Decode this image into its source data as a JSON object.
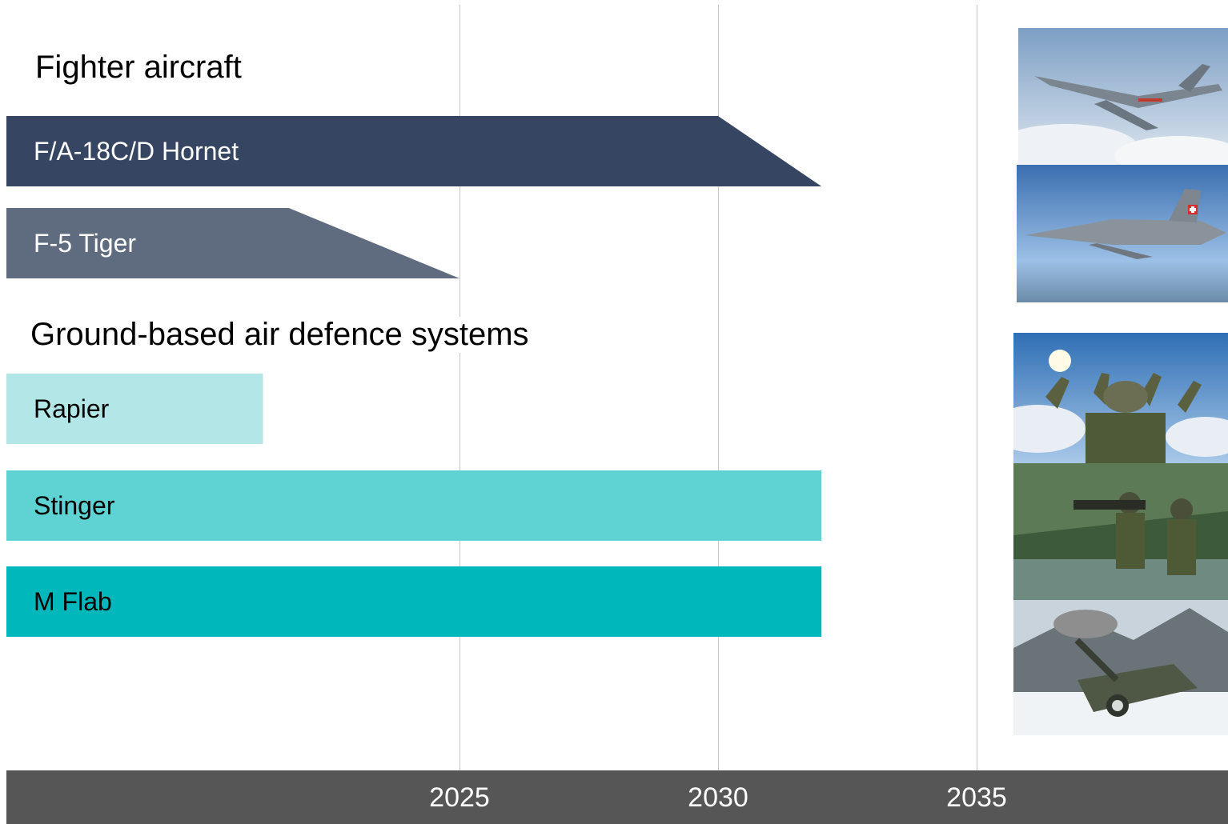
{
  "chart_data": {
    "type": "bar",
    "orientation": "horizontal",
    "x_axis": {
      "ticks": [
        2025,
        2030,
        2035
      ],
      "tick_labels": [
        "2025",
        "2030",
        "2035"
      ]
    },
    "groups": [
      {
        "title": "Fighter aircraft",
        "bars": [
          {
            "label": "F/A-18C/D Hornet",
            "end": 2030,
            "taper_end": 2032,
            "color": "#354562",
            "text_color": "#ffffff"
          },
          {
            "label": "F-5 Tiger",
            "end": 2021.7,
            "taper_end": 2025,
            "color": "#5f6c80",
            "text_color": "#ffffff"
          }
        ]
      },
      {
        "title": "Ground-based air defence systems",
        "bars": [
          {
            "label": "Rapier",
            "end": 2021.2,
            "color": "#b3e6e6",
            "text_color": "#000000"
          },
          {
            "label": "Stinger",
            "end": 2032,
            "color": "#5fd3d3",
            "text_color": "#000000"
          },
          {
            "label": "M Flab",
            "end": 2032,
            "color": "#00b8bc",
            "text_color": "#000000"
          }
        ]
      }
    ]
  },
  "photos": [
    {
      "icon": "fa18-hornet-photo"
    },
    {
      "icon": "f5-tiger-photo"
    },
    {
      "icon": "rapier-launcher-photo"
    },
    {
      "icon": "stinger-soldiers-photo"
    },
    {
      "icon": "m-flab-gun-photo"
    }
  ]
}
